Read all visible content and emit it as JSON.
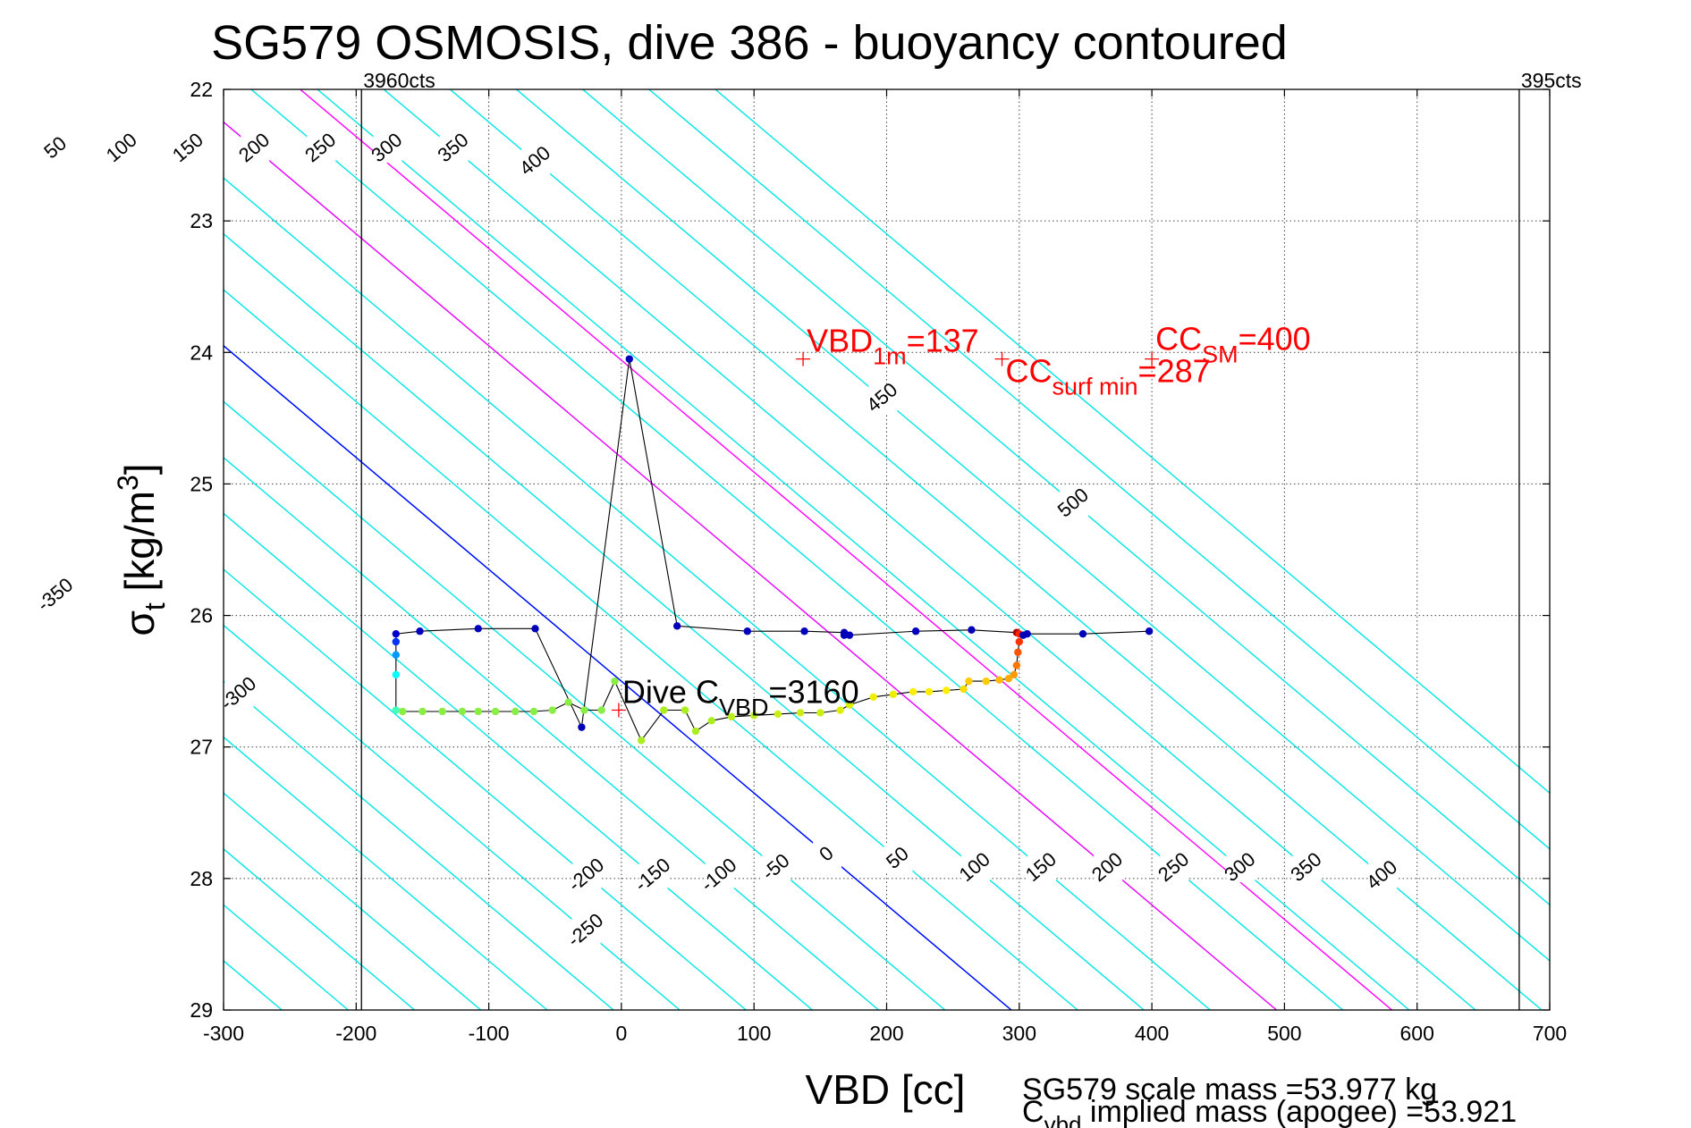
{
  "chart_data": {
    "type": "line",
    "title": "SG579 OSMOSIS, dive 386 - buoyancy contoured",
    "xlabel": "VBD [cc]",
    "ylabel": {
      "symbol": "σ",
      "sub": "t",
      "text": " [kg/m",
      "sup": "3",
      "close": "]"
    },
    "xlim": [
      -300,
      700
    ],
    "ylim": [
      22,
      29
    ],
    "y_reversed": true,
    "xticks": [
      -300,
      -200,
      -100,
      0,
      100,
      200,
      300,
      400,
      500,
      600,
      700
    ],
    "yticks": [
      22,
      23,
      24,
      25,
      26,
      27,
      28,
      29
    ],
    "grid": true,
    "limit_lines": [
      {
        "x": -196,
        "label": "3960cts"
      },
      {
        "x": 677,
        "label": "395cts"
      }
    ],
    "contours": {
      "slope_cc_per_sigma": 117.6,
      "color": "#00e5e5",
      "levels": [
        -550,
        -500,
        -450,
        -400,
        -350,
        -300,
        -250,
        -200,
        -150,
        -100,
        -50,
        0,
        50,
        100,
        150,
        200,
        250,
        300,
        350,
        400,
        450,
        500,
        550,
        600
      ],
      "highlight": [
        {
          "level": 0,
          "color": "#0000ff"
        },
        {
          "level": 200,
          "color": "#ff00ff"
        },
        {
          "level": 287,
          "color": "#ff00ff"
        }
      ],
      "labels_top": [
        {
          "level": -500,
          "sigma": 23.5
        },
        {
          "level": -450,
          "sigma": 24.25
        },
        {
          "level": -400,
          "sigma": 25.05
        },
        {
          "level": -350,
          "sigma": 25.85
        },
        {
          "level": -300,
          "sigma": 26.6
        },
        {
          "level": -250,
          "sigma": 23.0
        },
        {
          "level": -200,
          "sigma": 22.55
        },
        {
          "level": -150,
          "sigma": 22.55
        },
        {
          "level": -100,
          "sigma": 22.55
        },
        {
          "level": -50,
          "sigma": 22.45
        },
        {
          "level": 0,
          "sigma": 22.35
        },
        {
          "level": 50,
          "sigma": 22.45
        },
        {
          "level": 100,
          "sigma": 22.45
        },
        {
          "level": 150,
          "sigma": 22.45
        },
        {
          "level": 200,
          "sigma": 22.45
        },
        {
          "level": 250,
          "sigma": 22.45
        },
        {
          "level": 300,
          "sigma": 22.45
        },
        {
          "level": 350,
          "sigma": 22.45
        },
        {
          "level": 400,
          "sigma": 22.55
        },
        {
          "level": 450,
          "sigma": 24.35
        },
        {
          "level": 500,
          "sigma": 25.15
        }
      ],
      "labels_bottom": [
        {
          "level": -250,
          "sigma": 28.4
        },
        {
          "level": -200,
          "sigma": 27.98
        },
        {
          "level": -150,
          "sigma": 27.98
        },
        {
          "level": -100,
          "sigma": 27.98
        },
        {
          "level": -50,
          "sigma": 27.92
        },
        {
          "level": 0,
          "sigma": 27.82
        },
        {
          "level": 50,
          "sigma": 27.85
        },
        {
          "level": 100,
          "sigma": 27.92
        },
        {
          "level": 150,
          "sigma": 27.92
        },
        {
          "level": 200,
          "sigma": 27.92
        },
        {
          "level": 250,
          "sigma": 27.92
        },
        {
          "level": 300,
          "sigma": 27.92
        },
        {
          "level": 350,
          "sigma": 27.92
        },
        {
          "level": 400,
          "sigma": 27.98
        }
      ]
    },
    "series": [
      {
        "phase": "dive",
        "color_by_point": true,
        "points": [
          [
            -170,
            26.72
          ],
          [
            -170,
            26.45
          ],
          [
            -170,
            26.3
          ],
          [
            -170,
            26.2
          ],
          [
            -170,
            26.14
          ],
          [
            -152,
            26.12
          ],
          [
            -108,
            26.1
          ],
          [
            -65,
            26.1
          ],
          [
            -30,
            26.85
          ],
          [
            6,
            24.05
          ],
          [
            42,
            26.08
          ],
          [
            95,
            26.12
          ],
          [
            138,
            26.12
          ],
          [
            168,
            26.13
          ],
          [
            168,
            26.15
          ],
          [
            172,
            26.15
          ],
          [
            222,
            26.12
          ],
          [
            264,
            26.11
          ],
          [
            298,
            26.13
          ],
          [
            300,
            26.14
          ],
          [
            303,
            26.15
          ],
          [
            306,
            26.14
          ],
          [
            348,
            26.14
          ],
          [
            398,
            26.12
          ]
        ],
        "colors": [
          "#44ffbb",
          "#00ffff",
          "#0099ff",
          "#0033ff",
          "#0000cc",
          "#0000bb",
          "#0000bb",
          "#0000bb",
          "#0000bb",
          "#0000bb",
          "#0000bb",
          "#0000bb",
          "#0000bb",
          "#0000bb",
          "#0000bb",
          "#0000bb",
          "#0000bb",
          "#0000bb",
          "#aa0000",
          "#ff2200",
          "#0000bb",
          "#0000bb",
          "#0000bb",
          "#0000bb"
        ]
      },
      {
        "phase": "climb",
        "color_by_point": true,
        "points": [
          [
            -165,
            26.73
          ],
          [
            -150,
            26.73
          ],
          [
            -135,
            26.73
          ],
          [
            -120,
            26.73
          ],
          [
            -108,
            26.73
          ],
          [
            -95,
            26.73
          ],
          [
            -80,
            26.73
          ],
          [
            -66,
            26.73
          ],
          [
            -52,
            26.72
          ],
          [
            -40,
            26.66
          ],
          [
            -28,
            26.72
          ],
          [
            -15,
            26.72
          ],
          [
            -5,
            26.5
          ],
          [
            15,
            26.95
          ],
          [
            32,
            26.72
          ],
          [
            48,
            26.72
          ],
          [
            56,
            26.88
          ],
          [
            68,
            26.8
          ],
          [
            83,
            26.77
          ],
          [
            100,
            26.76
          ],
          [
            118,
            26.75
          ],
          [
            135,
            26.74
          ],
          [
            150,
            26.74
          ],
          [
            165,
            26.72
          ],
          [
            172,
            26.68
          ],
          [
            190,
            26.62
          ],
          [
            205,
            26.6
          ],
          [
            220,
            26.58
          ],
          [
            232,
            26.58
          ],
          [
            245,
            26.57
          ],
          [
            258,
            26.56
          ],
          [
            262,
            26.5
          ],
          [
            275,
            26.5
          ],
          [
            285,
            26.49
          ],
          [
            292,
            26.48
          ],
          [
            296,
            26.45
          ],
          [
            298,
            26.38
          ],
          [
            299,
            26.28
          ],
          [
            300,
            26.2
          ]
        ],
        "colors": [
          "#88ee44",
          "#88ee44",
          "#88ee44",
          "#88ee44",
          "#88ee44",
          "#88ee44",
          "#88ee44",
          "#88ee44",
          "#88ee44",
          "#88ee44",
          "#88ee44",
          "#88ee44",
          "#88ee44",
          "#aaee22",
          "#aaee22",
          "#aaee22",
          "#aaee22",
          "#aaee22",
          "#bbee22",
          "#bbee22",
          "#ccee11",
          "#ccee11",
          "#ccee11",
          "#ddee00",
          "#ddee00",
          "#eeee00",
          "#eeee00",
          "#ffee00",
          "#ffee00",
          "#ffee00",
          "#ffdd00",
          "#ffcc00",
          "#ffcc00",
          "#ffbb00",
          "#ffaa00",
          "#ff9900",
          "#ff7700",
          "#ff5500",
          "#ff3300"
        ]
      }
    ],
    "annotations": [
      {
        "x": 137,
        "y": 24.05,
        "main": "VBD",
        "sub": "1m",
        "rest": "=137",
        "color": "#ff0000"
      },
      {
        "x": 287,
        "y": 24.05,
        "main": "CC",
        "sub": "surf min",
        "rest": "=287",
        "color": "#ff0000"
      },
      {
        "x": 400,
        "y": 24.05,
        "main": "CC",
        "sub": "SM",
        "rest": "=400",
        "color": "#ff0000"
      },
      {
        "x": -2,
        "y": 26.72,
        "main": "Dive C",
        "sub": "VBD",
        "rest": "=3160",
        "color": "#000000"
      }
    ],
    "mass_text": {
      "line1": "SG579 scale mass =53.977 kg",
      "line2_main": "C",
      "line2_sub": "vbd",
      "line2_rest": " implied mass (apogee) =53.921"
    }
  }
}
